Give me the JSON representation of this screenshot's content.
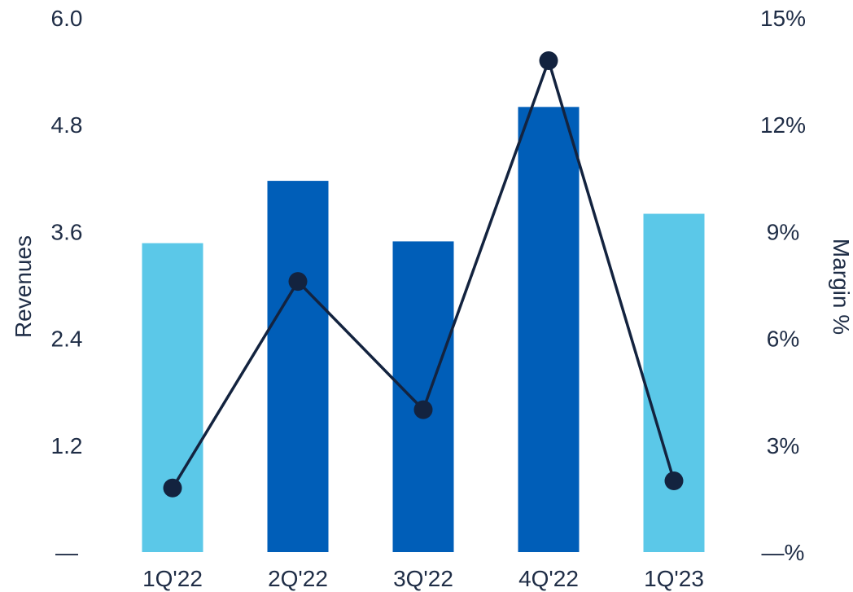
{
  "chart_data": {
    "type": "bar",
    "categories": [
      "1Q'22",
      "2Q'22",
      "3Q'22",
      "4Q'22",
      "1Q'23"
    ],
    "series": [
      {
        "type": "bar",
        "axis": "left",
        "values": [
          3.47,
          4.17,
          3.49,
          5.0,
          3.8
        ],
        "colors": [
          "#5bc8e8",
          "#005eb8",
          "#005eb8",
          "#005eb8",
          "#5bc8e8"
        ]
      },
      {
        "type": "line",
        "axis": "right",
        "values": [
          1.8,
          7.6,
          4.0,
          13.8,
          2.0
        ],
        "color": "#13233f"
      }
    ],
    "ylabel": "Revenues",
    "y2label": "Margin %",
    "ylim": [
      0,
      6.0
    ],
    "y2lim": [
      0,
      15
    ],
    "yticks": [
      "—",
      "1.2",
      "2.4",
      "3.6",
      "4.8",
      "6.0"
    ],
    "y2ticks": [
      "—%",
      "3%",
      "6%",
      "9%",
      "12%",
      "15%"
    ],
    "grid": false,
    "legend": "none"
  }
}
